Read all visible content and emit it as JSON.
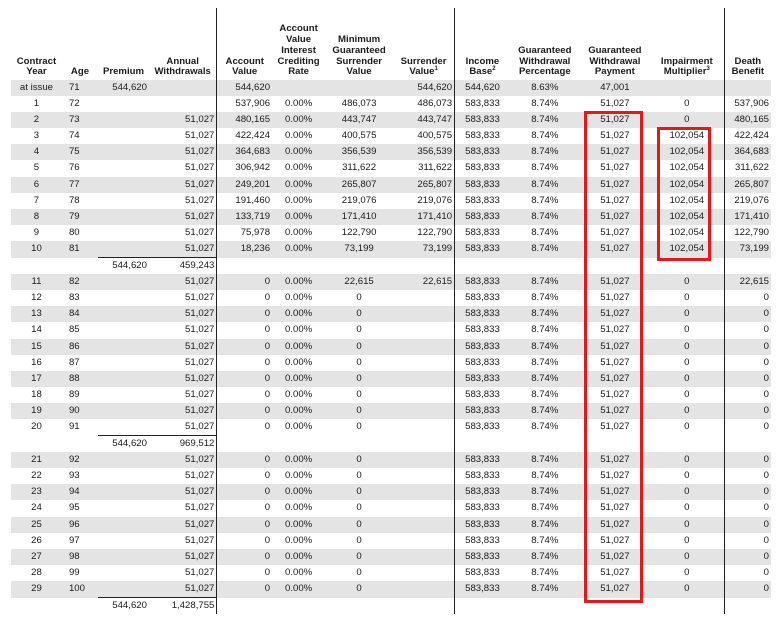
{
  "headers": {
    "year": "Contract Year",
    "age": "Age",
    "premium": "Premium",
    "withdrawals": "Annual Withdrawals",
    "account_value": "Account Value",
    "crediting_rate": "Account Value Interest Crediting Rate",
    "min_surrender": "Minimum Guaranteed Surrender Value",
    "surrender": "Surrender Value",
    "surrender_note": "1",
    "income_base": "Income Base",
    "income_base_note": "2",
    "gw_pct": "Guaranteed Withdrawal Percentage",
    "gw_payment": "Guaranteed Withdrawal Payment",
    "impairment": "Impairment Multiplier",
    "impairment_note": "3",
    "death": "Death Benefit"
  },
  "rows": [
    {
      "type": "data",
      "year": "at issue",
      "age": "71",
      "prem": "544,620",
      "wd": "",
      "av": "544,620",
      "rate": "",
      "msv": "",
      "sv": "544,620",
      "ib": "544,620",
      "gwp": "8.63%",
      "gwpay": "47,001",
      "im": "",
      "db": ""
    },
    {
      "type": "data",
      "year": "1",
      "age": "72",
      "prem": "",
      "wd": "",
      "av": "537,906",
      "rate": "0.00%",
      "msv": "486,073",
      "sv": "486,073",
      "ib": "583,833",
      "gwp": "8.74%",
      "gwpay": "51,027",
      "im": "0",
      "db": "537,906"
    },
    {
      "type": "data",
      "year": "2",
      "age": "73",
      "prem": "",
      "wd": "51,027",
      "av": "480,165",
      "rate": "0.00%",
      "msv": "443,747",
      "sv": "443,747",
      "ib": "583,833",
      "gwp": "8.74%",
      "gwpay": "51,027",
      "im": "0",
      "db": "480,165"
    },
    {
      "type": "data",
      "year": "3",
      "age": "74",
      "prem": "",
      "wd": "51,027",
      "av": "422,424",
      "rate": "0.00%",
      "msv": "400,575",
      "sv": "400,575",
      "ib": "583,833",
      "gwp": "8.74%",
      "gwpay": "51,027",
      "im": "102,054",
      "db": "422,424"
    },
    {
      "type": "data",
      "year": "4",
      "age": "75",
      "prem": "",
      "wd": "51,027",
      "av": "364,683",
      "rate": "0.00%",
      "msv": "356,539",
      "sv": "356,539",
      "ib": "583,833",
      "gwp": "8.74%",
      "gwpay": "51,027",
      "im": "102,054",
      "db": "364,683"
    },
    {
      "type": "data",
      "year": "5",
      "age": "76",
      "prem": "",
      "wd": "51,027",
      "av": "306,942",
      "rate": "0.00%",
      "msv": "311,622",
      "sv": "311,622",
      "ib": "583,833",
      "gwp": "8.74%",
      "gwpay": "51,027",
      "im": "102,054",
      "db": "311,622"
    },
    {
      "type": "data",
      "year": "6",
      "age": "77",
      "prem": "",
      "wd": "51,027",
      "av": "249,201",
      "rate": "0.00%",
      "msv": "265,807",
      "sv": "265,807",
      "ib": "583,833",
      "gwp": "8.74%",
      "gwpay": "51,027",
      "im": "102,054",
      "db": "265,807"
    },
    {
      "type": "data",
      "year": "7",
      "age": "78",
      "prem": "",
      "wd": "51,027",
      "av": "191,460",
      "rate": "0.00%",
      "msv": "219,076",
      "sv": "219,076",
      "ib": "583,833",
      "gwp": "8.74%",
      "gwpay": "51,027",
      "im": "102,054",
      "db": "219,076"
    },
    {
      "type": "data",
      "year": "8",
      "age": "79",
      "prem": "",
      "wd": "51,027",
      "av": "133,719",
      "rate": "0.00%",
      "msv": "171,410",
      "sv": "171,410",
      "ib": "583,833",
      "gwp": "8.74%",
      "gwpay": "51,027",
      "im": "102,054",
      "db": "171,410"
    },
    {
      "type": "data",
      "year": "9",
      "age": "80",
      "prem": "",
      "wd": "51,027",
      "av": "75,978",
      "rate": "0.00%",
      "msv": "122,790",
      "sv": "122,790",
      "ib": "583,833",
      "gwp": "8.74%",
      "gwpay": "51,027",
      "im": "102,054",
      "db": "122,790"
    },
    {
      "type": "data",
      "year": "10",
      "age": "81",
      "prem": "",
      "wd": "51,027",
      "av": "18,236",
      "rate": "0.00%",
      "msv": "73,199",
      "sv": "73,199",
      "ib": "583,833",
      "gwp": "8.74%",
      "gwpay": "51,027",
      "im": "102,054",
      "db": "73,199"
    },
    {
      "type": "sum",
      "prem": "544,620",
      "wd": "459,243"
    },
    {
      "type": "data",
      "year": "11",
      "age": "82",
      "prem": "",
      "wd": "51,027",
      "av": "0",
      "rate": "0.00%",
      "msv": "22,615",
      "sv": "22,615",
      "ib": "583,833",
      "gwp": "8.74%",
      "gwpay": "51,027",
      "im": "0",
      "db": "22,615"
    },
    {
      "type": "data",
      "year": "12",
      "age": "83",
      "prem": "",
      "wd": "51,027",
      "av": "0",
      "rate": "0.00%",
      "msv": "0",
      "sv": "",
      "ib": "583,833",
      "gwp": "8.74%",
      "gwpay": "51,027",
      "im": "0",
      "db": "0"
    },
    {
      "type": "data",
      "year": "13",
      "age": "84",
      "prem": "",
      "wd": "51,027",
      "av": "0",
      "rate": "0.00%",
      "msv": "0",
      "sv": "",
      "ib": "583,833",
      "gwp": "8.74%",
      "gwpay": "51,027",
      "im": "0",
      "db": "0"
    },
    {
      "type": "data",
      "year": "14",
      "age": "85",
      "prem": "",
      "wd": "51,027",
      "av": "0",
      "rate": "0.00%",
      "msv": "0",
      "sv": "",
      "ib": "583,833",
      "gwp": "8.74%",
      "gwpay": "51,027",
      "im": "0",
      "db": "0"
    },
    {
      "type": "data",
      "year": "15",
      "age": "86",
      "prem": "",
      "wd": "51,027",
      "av": "0",
      "rate": "0.00%",
      "msv": "0",
      "sv": "",
      "ib": "583,833",
      "gwp": "8.74%",
      "gwpay": "51,027",
      "im": "0",
      "db": "0"
    },
    {
      "type": "data",
      "year": "16",
      "age": "87",
      "prem": "",
      "wd": "51,027",
      "av": "0",
      "rate": "0.00%",
      "msv": "0",
      "sv": "",
      "ib": "583,833",
      "gwp": "8.74%",
      "gwpay": "51,027",
      "im": "0",
      "db": "0"
    },
    {
      "type": "data",
      "year": "17",
      "age": "88",
      "prem": "",
      "wd": "51,027",
      "av": "0",
      "rate": "0.00%",
      "msv": "0",
      "sv": "",
      "ib": "583,833",
      "gwp": "8.74%",
      "gwpay": "51,027",
      "im": "0",
      "db": "0"
    },
    {
      "type": "data",
      "year": "18",
      "age": "89",
      "prem": "",
      "wd": "51,027",
      "av": "0",
      "rate": "0.00%",
      "msv": "0",
      "sv": "",
      "ib": "583,833",
      "gwp": "8.74%",
      "gwpay": "51,027",
      "im": "0",
      "db": "0"
    },
    {
      "type": "data",
      "year": "19",
      "age": "90",
      "prem": "",
      "wd": "51,027",
      "av": "0",
      "rate": "0.00%",
      "msv": "0",
      "sv": "",
      "ib": "583,833",
      "gwp": "8.74%",
      "gwpay": "51,027",
      "im": "0",
      "db": "0"
    },
    {
      "type": "data",
      "year": "20",
      "age": "91",
      "prem": "",
      "wd": "51,027",
      "av": "0",
      "rate": "0.00%",
      "msv": "0",
      "sv": "",
      "ib": "583,833",
      "gwp": "8.74%",
      "gwpay": "51,027",
      "im": "0",
      "db": "0"
    },
    {
      "type": "sum",
      "prem": "544,620",
      "wd": "969,512"
    },
    {
      "type": "data",
      "year": "21",
      "age": "92",
      "prem": "",
      "wd": "51,027",
      "av": "0",
      "rate": "0.00%",
      "msv": "0",
      "sv": "",
      "ib": "583,833",
      "gwp": "8.74%",
      "gwpay": "51,027",
      "im": "0",
      "db": "0"
    },
    {
      "type": "data",
      "year": "22",
      "age": "93",
      "prem": "",
      "wd": "51,027",
      "av": "0",
      "rate": "0.00%",
      "msv": "0",
      "sv": "",
      "ib": "583,833",
      "gwp": "8.74%",
      "gwpay": "51,027",
      "im": "0",
      "db": "0"
    },
    {
      "type": "data",
      "year": "23",
      "age": "94",
      "prem": "",
      "wd": "51,027",
      "av": "0",
      "rate": "0.00%",
      "msv": "0",
      "sv": "",
      "ib": "583,833",
      "gwp": "8.74%",
      "gwpay": "51,027",
      "im": "0",
      "db": "0"
    },
    {
      "type": "data",
      "year": "24",
      "age": "95",
      "prem": "",
      "wd": "51,027",
      "av": "0",
      "rate": "0.00%",
      "msv": "0",
      "sv": "",
      "ib": "583,833",
      "gwp": "8.74%",
      "gwpay": "51,027",
      "im": "0",
      "db": "0"
    },
    {
      "type": "data",
      "year": "25",
      "age": "96",
      "prem": "",
      "wd": "51,027",
      "av": "0",
      "rate": "0.00%",
      "msv": "0",
      "sv": "",
      "ib": "583,833",
      "gwp": "8.74%",
      "gwpay": "51,027",
      "im": "0",
      "db": "0"
    },
    {
      "type": "data",
      "year": "26",
      "age": "97",
      "prem": "",
      "wd": "51,027",
      "av": "0",
      "rate": "0.00%",
      "msv": "0",
      "sv": "",
      "ib": "583,833",
      "gwp": "8.74%",
      "gwpay": "51,027",
      "im": "0",
      "db": "0"
    },
    {
      "type": "data",
      "year": "27",
      "age": "98",
      "prem": "",
      "wd": "51,027",
      "av": "0",
      "rate": "0.00%",
      "msv": "0",
      "sv": "",
      "ib": "583,833",
      "gwp": "8.74%",
      "gwpay": "51,027",
      "im": "0",
      "db": "0"
    },
    {
      "type": "data",
      "year": "28",
      "age": "99",
      "prem": "",
      "wd": "51,027",
      "av": "0",
      "rate": "0.00%",
      "msv": "0",
      "sv": "",
      "ib": "583,833",
      "gwp": "8.74%",
      "gwpay": "51,027",
      "im": "0",
      "db": "0"
    },
    {
      "type": "data",
      "year": "29",
      "age": "100",
      "prem": "",
      "wd": "51,027",
      "av": "0",
      "rate": "0.00%",
      "msv": "0",
      "sv": "",
      "ib": "583,833",
      "gwp": "8.74%",
      "gwpay": "51,027",
      "im": "0",
      "db": "0"
    },
    {
      "type": "sum",
      "prem": "544,620",
      "wd": "1,428,755"
    }
  ],
  "highlight_color": "#e01b1b",
  "shade_color": "#e4e4e4"
}
